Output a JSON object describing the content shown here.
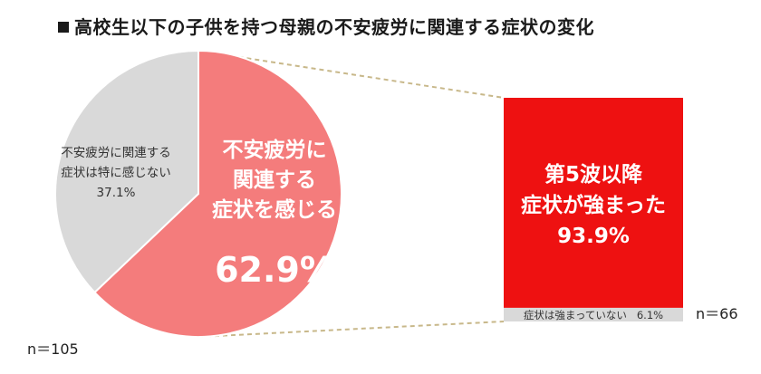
{
  "title": "高校生以下の子供を持つ母親の不安疲労に関連する症状の変化",
  "chart_data": [
    {
      "type": "pie",
      "n_label": "n＝105",
      "slices": [
        {
          "name": "不安疲労に関連する症状を感じる",
          "label_lines": [
            "不安疲労に",
            "関連する",
            "症状を感じる"
          ],
          "value": 62.9,
          "value_label": "62.9%",
          "color": "#f47c7c"
        },
        {
          "name": "不安疲労に関連する症状は特に感じない",
          "label_lines": [
            "不安疲労に関連する",
            "症状は特に感じない"
          ],
          "value": 37.1,
          "value_label": "37.1%",
          "color": "#d9d9d9"
        }
      ]
    },
    {
      "type": "bar",
      "stacked": true,
      "n_label": "n＝66",
      "segments": [
        {
          "name": "第5波以降症状が強まった",
          "label_lines": [
            "第5波以降",
            "症状が強まった"
          ],
          "value": 93.9,
          "value_label": "93.9%",
          "color": "#ee1111"
        },
        {
          "name": "症状は強まっていない",
          "label": "症状は強まっていない",
          "value": 6.1,
          "value_label": "6.1%",
          "color": "#d9d9d9"
        }
      ]
    }
  ],
  "styles": {
    "connector_color": "#c8b88a"
  }
}
